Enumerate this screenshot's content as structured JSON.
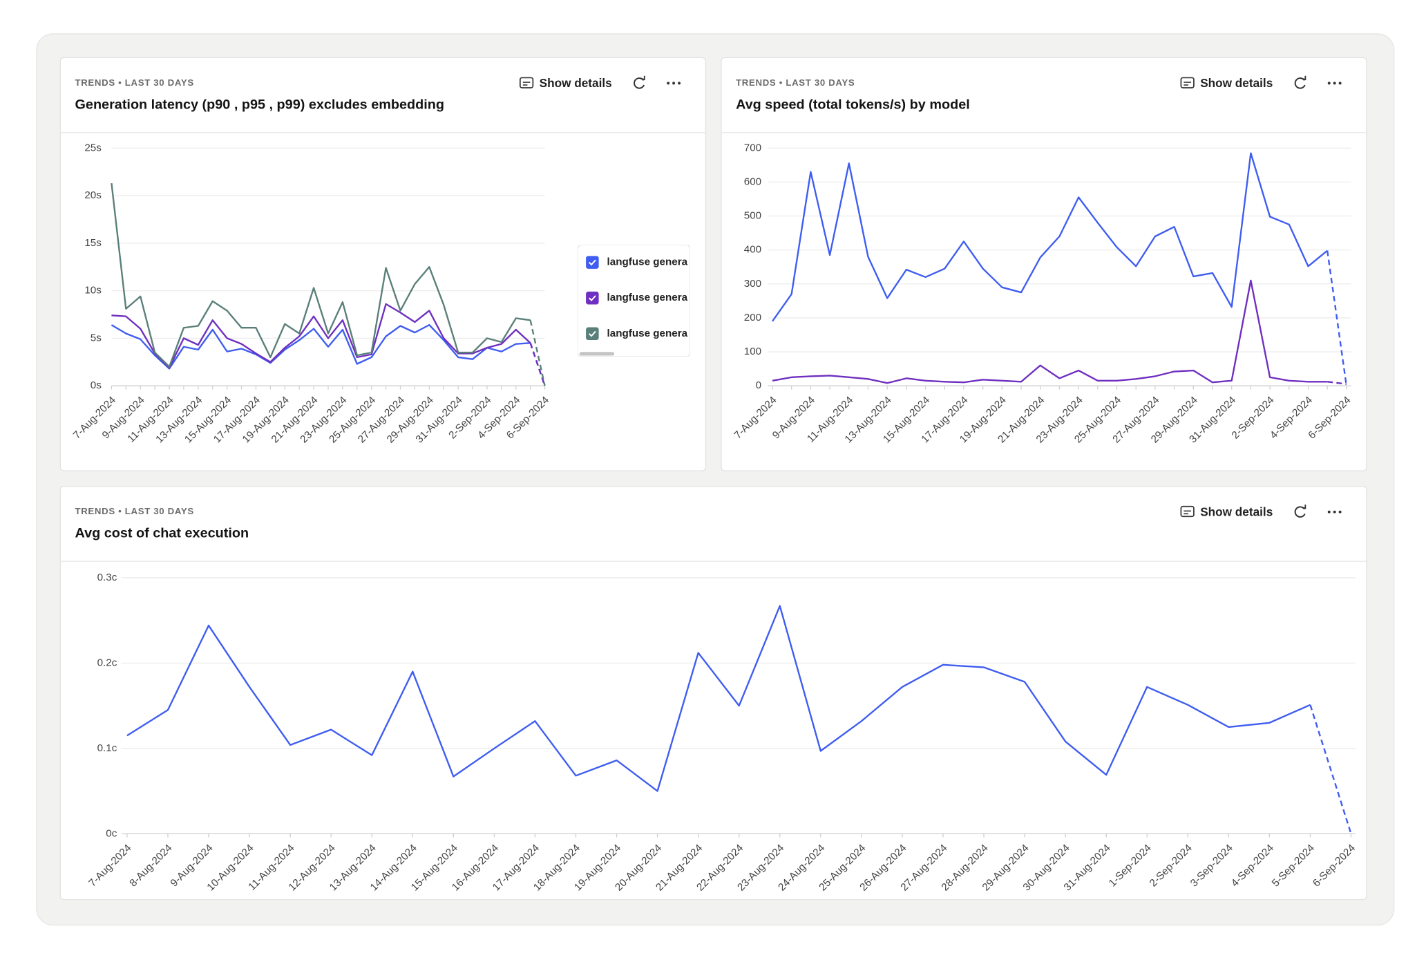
{
  "chart_data": [
    {
      "type": "line",
      "subtitle": "TRENDS • LAST 30 DAYS",
      "title": "Generation latency (p90 , p95 , p99) excludes embedding",
      "action": "Show details",
      "categories": [
        "7-Aug-2024",
        null,
        "9-Aug-2024",
        null,
        "11-Aug-2024",
        null,
        "13-Aug-2024",
        null,
        "15-Aug-2024",
        null,
        "17-Aug-2024",
        null,
        "19-Aug-2024",
        null,
        "21-Aug-2024",
        null,
        "23-Aug-2024",
        null,
        "25-Aug-2024",
        null,
        "27-Aug-2024",
        null,
        "29-Aug-2024",
        null,
        "31-Aug-2024",
        null,
        "2-Sep-2024",
        null,
        "4-Sep-2024",
        null,
        "6-Sep-2024"
      ],
      "series": [
        {
          "name": "langfuse genera",
          "color": "#3f5df0",
          "values": [
            6.4,
            5.5,
            4.9,
            3.2,
            1.8,
            4.1,
            3.8,
            5.9,
            3.6,
            3.9,
            3.3,
            2.4,
            3.8,
            4.8,
            6.0,
            4.1,
            5.9,
            2.3,
            3.0,
            5.2,
            6.3,
            5.6,
            6.4,
            4.8,
            3.0,
            2.8,
            4.0,
            3.6,
            4.4,
            4.5,
            0
          ]
        },
        {
          "name": "langfuse genera",
          "color": "#6f2fc0",
          "values": [
            7.4,
            7.3,
            6.0,
            3.4,
            1.9,
            5.0,
            4.3,
            6.9,
            5.0,
            4.4,
            3.4,
            2.5,
            4.0,
            5.2,
            7.3,
            5.0,
            6.9,
            3.0,
            3.3,
            8.6,
            7.7,
            6.7,
            7.9,
            5.0,
            3.4,
            3.4,
            4.0,
            4.4,
            5.9,
            4.5,
            0
          ]
        },
        {
          "name": "langfuse genera",
          "color": "#5a7f79",
          "values": [
            21.3,
            8.1,
            9.4,
            3.5,
            2.0,
            6.1,
            6.3,
            8.9,
            7.9,
            6.1,
            6.1,
            3.0,
            6.5,
            5.5,
            10.3,
            5.5,
            8.8,
            3.2,
            3.5,
            12.4,
            7.9,
            10.7,
            12.5,
            8.5,
            3.5,
            3.5,
            5.0,
            4.6,
            7.1,
            6.9,
            0
          ]
        }
      ],
      "ylim": [
        0,
        25
      ],
      "yticks": [
        {
          "value": 0,
          "label": "0s"
        },
        {
          "value": 5,
          "label": "5s"
        },
        {
          "value": 10,
          "label": "10s"
        },
        {
          "value": 15,
          "label": "15s"
        },
        {
          "value": 20,
          "label": "20s"
        },
        {
          "value": 25,
          "label": "25s"
        }
      ],
      "grid": true,
      "legend": "right"
    },
    {
      "type": "line",
      "subtitle": "TRENDS • LAST 30 DAYS",
      "title": "Avg speed (total tokens/s) by model",
      "action": "Show details",
      "categories": [
        "7-Aug-2024",
        null,
        "9-Aug-2024",
        null,
        "11-Aug-2024",
        null,
        "13-Aug-2024",
        null,
        "15-Aug-2024",
        null,
        "17-Aug-2024",
        null,
        "19-Aug-2024",
        null,
        "21-Aug-2024",
        null,
        "23-Aug-2024",
        null,
        "25-Aug-2024",
        null,
        "27-Aug-2024",
        null,
        "29-Aug-2024",
        null,
        "31-Aug-2024",
        null,
        "2-Sep-2024",
        null,
        "4-Sep-2024",
        null,
        "6-Sep-2024"
      ],
      "series": [
        {
          "color": "#3f5df0",
          "values": [
            190,
            270,
            630,
            385,
            655,
            380,
            258,
            342,
            320,
            345,
            425,
            345,
            290,
            275,
            378,
            440,
            555,
            480,
            408,
            352,
            440,
            468,
            322,
            332,
            232,
            685,
            498,
            475,
            352,
            398,
            0
          ]
        },
        {
          "color": "#6f2fc0",
          "values": [
            15,
            25,
            28,
            30,
            25,
            20,
            8,
            22,
            15,
            12,
            10,
            18,
            15,
            12,
            60,
            22,
            45,
            15,
            15,
            20,
            28,
            42,
            45,
            10,
            15,
            310,
            25,
            15,
            12,
            12,
            5
          ]
        }
      ],
      "ylim": [
        0,
        700
      ],
      "yticks": [
        0,
        100,
        200,
        300,
        400,
        500,
        600,
        700
      ],
      "grid": true
    },
    {
      "type": "line",
      "subtitle": "TRENDS • LAST 30 DAYS",
      "title": "Avg cost of chat execution",
      "action": "Show details",
      "categories": [
        "7-Aug-2024",
        "8-Aug-2024",
        "9-Aug-2024",
        "10-Aug-2024",
        "11-Aug-2024",
        "12-Aug-2024",
        "13-Aug-2024",
        "14-Aug-2024",
        "15-Aug-2024",
        "16-Aug-2024",
        "17-Aug-2024",
        "18-Aug-2024",
        "19-Aug-2024",
        "20-Aug-2024",
        "21-Aug-2024",
        "22-Aug-2024",
        "23-Aug-2024",
        "24-Aug-2024",
        "25-Aug-2024",
        "26-Aug-2024",
        "27-Aug-2024",
        "28-Aug-2024",
        "29-Aug-2024",
        "30-Aug-2024",
        "31-Aug-2024",
        "1-Sep-2024",
        "2-Sep-2024",
        "3-Sep-2024",
        "4-Sep-2024",
        "5-Sep-2024",
        "6-Sep-2024"
      ],
      "series": [
        {
          "color": "#3f5df0",
          "values": [
            0.115,
            0.145,
            0.244,
            0.172,
            0.104,
            0.122,
            0.092,
            0.19,
            0.067,
            0.1,
            0.132,
            0.068,
            0.086,
            0.05,
            0.212,
            0.15,
            0.267,
            0.097,
            0.132,
            0.172,
            0.198,
            0.195,
            0.178,
            0.108,
            0.069,
            0.172,
            0.151,
            0.125,
            0.13,
            0.151,
            0
          ]
        }
      ],
      "ylim": [
        0,
        0.3
      ],
      "yticks": [
        {
          "value": 0,
          "label": "0c"
        },
        {
          "value": 0.1,
          "label": "0.1c"
        },
        {
          "value": 0.2,
          "label": "0.2c"
        },
        {
          "value": 0.3,
          "label": "0.3c"
        }
      ],
      "grid": true
    }
  ]
}
